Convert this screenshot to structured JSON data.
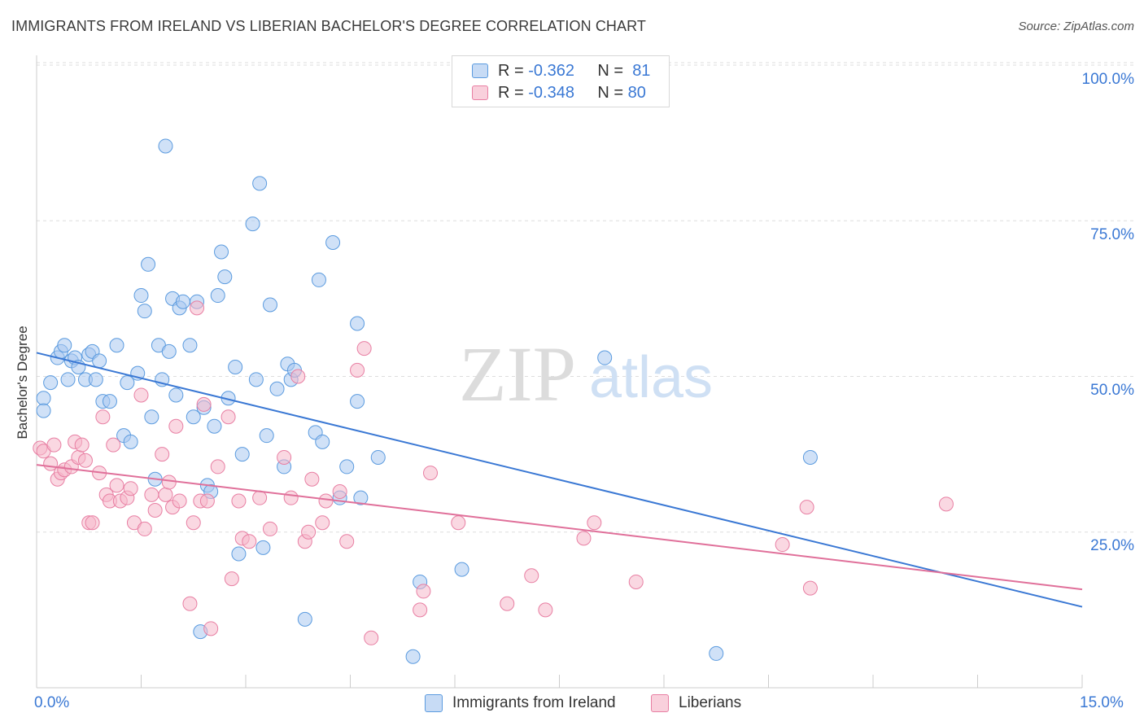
{
  "header": {
    "title": "IMMIGRANTS FROM IRELAND VS LIBERIAN BACHELOR'S DEGREE CORRELATION CHART",
    "source": "Source: ZipAtlas.com"
  },
  "watermark": {
    "zip": "ZIP",
    "atlas": "atlas"
  },
  "legend": {
    "r_label": "R =",
    "n_label": "N =",
    "rows": [
      {
        "r": "-0.362",
        "n": "81",
        "color": "#a9c8f0"
      },
      {
        "r": "-0.348",
        "n": "80",
        "color": "#f5b8cb"
      }
    ]
  },
  "bottom_legend": [
    {
      "label": "Immigrants from Ireland",
      "color": "#a9c8f0"
    },
    {
      "label": "Liberians",
      "color": "#f5b8cb"
    }
  ],
  "axes": {
    "ylabel": "Bachelor's Degree",
    "x_min_label": "0.0%",
    "x_max_label": "15.0%",
    "y_ticks": [
      "25.0%",
      "50.0%",
      "75.0%",
      "100.0%"
    ]
  },
  "chart_data": {
    "type": "scatter",
    "title": "IMMIGRANTS FROM IRELAND VS LIBERIAN BACHELOR'S DEGREE CORRELATION CHART",
    "xlabel": "",
    "ylabel": "Bachelor's Degree",
    "xlim": [
      0,
      15
    ],
    "ylim": [
      0,
      100
    ],
    "y_ticks": [
      25,
      50,
      75,
      100
    ],
    "grid": true,
    "legend_position": "bottom",
    "series": [
      {
        "name": "Immigrants from Ireland",
        "color": "#5b9bdf",
        "fill": "#a9c8f0",
        "trend": {
          "x": [
            0,
            15
          ],
          "y": [
            53.8,
            13.0
          ],
          "color": "#3a78d4"
        },
        "points": [
          [
            0.1,
            46.5
          ],
          [
            0.1,
            44.5
          ],
          [
            0.2,
            49.0
          ],
          [
            0.3,
            53.0
          ],
          [
            0.35,
            54.0
          ],
          [
            0.4,
            55.0
          ],
          [
            0.45,
            49.5
          ],
          [
            0.5,
            52.5
          ],
          [
            0.55,
            53.0
          ],
          [
            0.6,
            51.5
          ],
          [
            0.7,
            49.5
          ],
          [
            0.75,
            53.5
          ],
          [
            0.8,
            54.0
          ],
          [
            0.85,
            49.5
          ],
          [
            0.9,
            52.5
          ],
          [
            0.95,
            46.0
          ],
          [
            1.05,
            46.0
          ],
          [
            1.15,
            55.0
          ],
          [
            1.25,
            40.5
          ],
          [
            1.3,
            49.0
          ],
          [
            1.35,
            39.5
          ],
          [
            1.45,
            50.5
          ],
          [
            1.5,
            63.0
          ],
          [
            1.55,
            60.5
          ],
          [
            1.6,
            68.0
          ],
          [
            1.65,
            43.5
          ],
          [
            1.7,
            33.5
          ],
          [
            1.75,
            55.0
          ],
          [
            1.8,
            49.5
          ],
          [
            1.85,
            87.0
          ],
          [
            1.9,
            54.0
          ],
          [
            1.95,
            62.5
          ],
          [
            2.0,
            47.0
          ],
          [
            2.05,
            61.0
          ],
          [
            2.1,
            62.0
          ],
          [
            2.2,
            55.0
          ],
          [
            2.25,
            43.5
          ],
          [
            2.3,
            62.0
          ],
          [
            2.35,
            9.0
          ],
          [
            2.4,
            45.0
          ],
          [
            2.45,
            32.5
          ],
          [
            2.5,
            31.5
          ],
          [
            2.55,
            42.0
          ],
          [
            2.6,
            63.0
          ],
          [
            2.65,
            70.0
          ],
          [
            2.7,
            66.0
          ],
          [
            2.75,
            46.5
          ],
          [
            2.85,
            51.5
          ],
          [
            2.9,
            21.5
          ],
          [
            2.95,
            37.5
          ],
          [
            3.1,
            74.5
          ],
          [
            3.15,
            49.5
          ],
          [
            3.2,
            81.0
          ],
          [
            3.25,
            22.5
          ],
          [
            3.3,
            40.5
          ],
          [
            3.35,
            61.5
          ],
          [
            3.45,
            48.0
          ],
          [
            3.55,
            35.5
          ],
          [
            3.6,
            52.0
          ],
          [
            3.65,
            49.5
          ],
          [
            3.7,
            51.0
          ],
          [
            3.85,
            11.0
          ],
          [
            4.0,
            41.0
          ],
          [
            4.05,
            65.5
          ],
          [
            4.1,
            39.5
          ],
          [
            4.25,
            71.5
          ],
          [
            4.35,
            30.5
          ],
          [
            4.45,
            35.5
          ],
          [
            4.6,
            46.0
          ],
          [
            4.6,
            58.5
          ],
          [
            4.65,
            30.5
          ],
          [
            4.9,
            37.0
          ],
          [
            5.4,
            5.0
          ],
          [
            5.5,
            17.0
          ],
          [
            6.1,
            19.0
          ],
          [
            8.15,
            53.0
          ],
          [
            9.75,
            5.5
          ],
          [
            11.1,
            37.0
          ]
        ]
      },
      {
        "name": "Liberians",
        "color": "#e87fa3",
        "fill": "#f5b8cb",
        "trend": {
          "x": [
            0,
            15
          ],
          "y": [
            35.8,
            15.8
          ],
          "color": "#e0709a"
        },
        "points": [
          [
            0.05,
            38.5
          ],
          [
            0.1,
            38.0
          ],
          [
            0.2,
            36.0
          ],
          [
            0.25,
            39.0
          ],
          [
            0.3,
            33.5
          ],
          [
            0.35,
            34.5
          ],
          [
            0.4,
            35.0
          ],
          [
            0.5,
            35.5
          ],
          [
            0.55,
            39.5
          ],
          [
            0.6,
            37.0
          ],
          [
            0.65,
            39.0
          ],
          [
            0.7,
            36.5
          ],
          [
            0.75,
            26.5
          ],
          [
            0.8,
            26.5
          ],
          [
            0.9,
            34.5
          ],
          [
            0.95,
            43.5
          ],
          [
            1.0,
            31.0
          ],
          [
            1.05,
            30.0
          ],
          [
            1.1,
            39.0
          ],
          [
            1.15,
            32.5
          ],
          [
            1.2,
            30.0
          ],
          [
            1.3,
            30.5
          ],
          [
            1.35,
            32.0
          ],
          [
            1.4,
            26.5
          ],
          [
            1.5,
            47.0
          ],
          [
            1.55,
            25.5
          ],
          [
            1.65,
            31.0
          ],
          [
            1.7,
            28.5
          ],
          [
            1.8,
            37.5
          ],
          [
            1.85,
            31.0
          ],
          [
            1.9,
            33.0
          ],
          [
            1.95,
            29.0
          ],
          [
            2.0,
            42.0
          ],
          [
            2.05,
            30.0
          ],
          [
            2.2,
            13.5
          ],
          [
            2.25,
            26.5
          ],
          [
            2.3,
            61.0
          ],
          [
            2.35,
            30.0
          ],
          [
            2.4,
            45.5
          ],
          [
            2.45,
            30.0
          ],
          [
            2.5,
            9.5
          ],
          [
            2.6,
            35.5
          ],
          [
            2.75,
            43.5
          ],
          [
            2.8,
            17.5
          ],
          [
            2.9,
            30.0
          ],
          [
            2.95,
            24.0
          ],
          [
            3.05,
            23.5
          ],
          [
            3.2,
            30.5
          ],
          [
            3.35,
            25.5
          ],
          [
            3.55,
            37.0
          ],
          [
            3.65,
            30.5
          ],
          [
            3.75,
            50.0
          ],
          [
            3.85,
            23.5
          ],
          [
            3.9,
            25.0
          ],
          [
            3.95,
            33.5
          ],
          [
            4.1,
            26.5
          ],
          [
            4.15,
            30.0
          ],
          [
            4.35,
            31.5
          ],
          [
            4.45,
            23.5
          ],
          [
            4.6,
            51.0
          ],
          [
            4.7,
            54.5
          ],
          [
            4.8,
            8.0
          ],
          [
            5.5,
            12.5
          ],
          [
            5.55,
            15.5
          ],
          [
            5.65,
            34.5
          ],
          [
            6.05,
            26.5
          ],
          [
            6.75,
            13.5
          ],
          [
            7.1,
            18.0
          ],
          [
            7.3,
            12.5
          ],
          [
            7.85,
            24.0
          ],
          [
            8.0,
            26.5
          ],
          [
            8.6,
            17.0
          ],
          [
            10.7,
            23.0
          ],
          [
            11.05,
            29.0
          ],
          [
            11.1,
            16.0
          ],
          [
            13.05,
            29.5
          ]
        ]
      }
    ]
  }
}
